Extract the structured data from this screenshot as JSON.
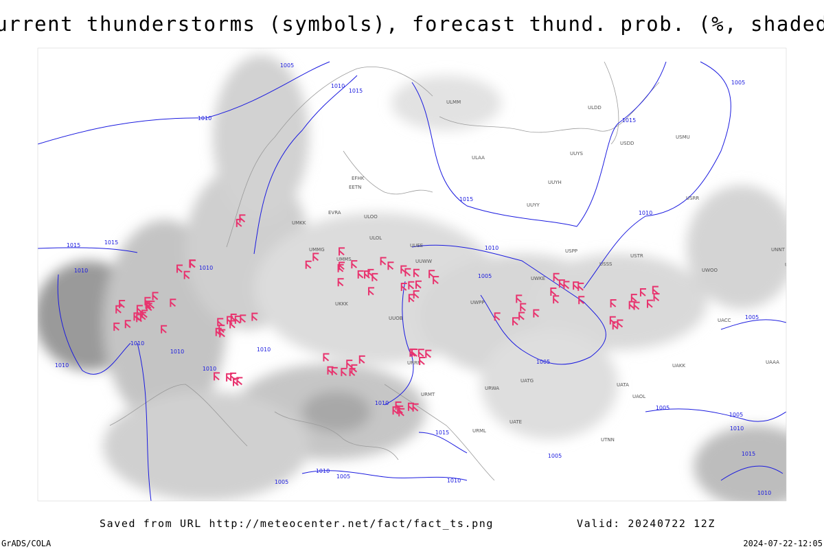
{
  "header": {
    "title": "Current thunderstorms (symbols), forecast thund. prob. (%, shaded)"
  },
  "footer": {
    "source": "Saved from URL http://meteocenter.net/fact/fact_ts.png",
    "valid": "Valid: 20240722 12Z",
    "software": "GrADS/COLA",
    "timestamp": "2024-07-22-12:05"
  },
  "isobar_labels": [
    "1005",
    "1010",
    "1015",
    "1010",
    "1015",
    "1005",
    "1015",
    "1010",
    "1010",
    "1005",
    "1015",
    "1015",
    "1010",
    "1010",
    "1010",
    "1010",
    "1010",
    "1010",
    "1010",
    "1005",
    "1005",
    "1010",
    "1015",
    "1005",
    "1005",
    "1005",
    "1010",
    "1010",
    "1005",
    "1005",
    "1010",
    "1015",
    "1010"
  ],
  "stations": [
    "ULOL",
    "UMMS",
    "UUWW",
    "UUEE",
    "UWPP",
    "UWKE",
    "USSS",
    "USTR",
    "UACC",
    "UAAA",
    "URRR",
    "URWA",
    "URMT",
    "UATG",
    "UNNT",
    "UNBB",
    "UWOO",
    "USPP",
    "ULAA",
    "UUYS",
    "UUYH",
    "UUYY",
    "ULMM",
    "ULDD",
    "USDD",
    "USMU",
    "USRR",
    "UAKK",
    "UATA",
    "UAOL",
    "UATE",
    "URML",
    "UTNN",
    "UUOB",
    "UKKK",
    "UMMG",
    "EVRA",
    "ULOO",
    "UMKK",
    "EETN",
    "EFHK"
  ]
}
